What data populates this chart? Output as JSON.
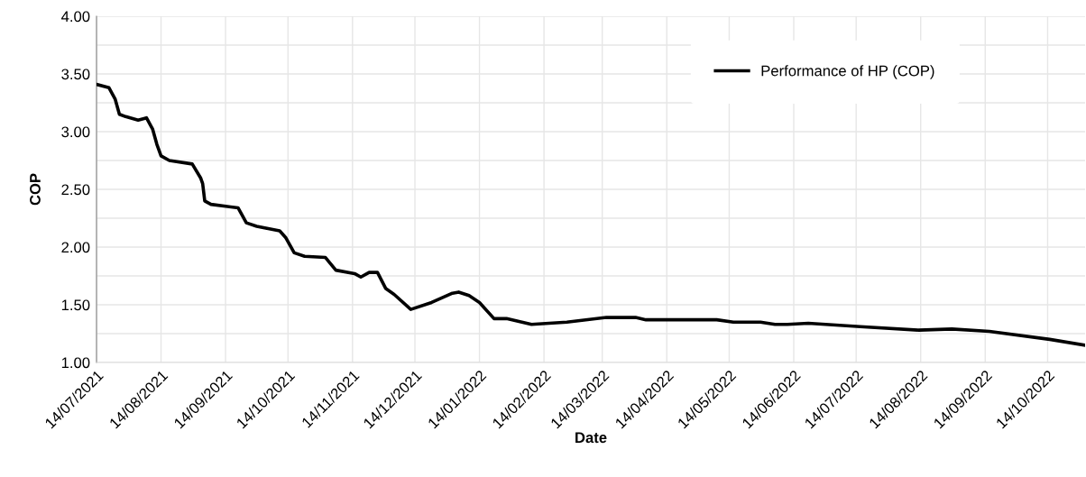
{
  "chart_data": {
    "type": "line",
    "xlabel": "Date",
    "ylabel": "COP",
    "series": [
      {
        "name": "Performance of HP (COP)",
        "color": "#000000",
        "x": [
          "2021-07-14",
          "2021-07-20",
          "2021-07-23",
          "2021-07-25",
          "2021-07-28",
          "2021-08-03",
          "2021-08-07",
          "2021-08-10",
          "2021-08-12",
          "2021-08-14",
          "2021-08-18",
          "2021-08-29",
          "2021-09-02",
          "2021-09-03",
          "2021-09-04",
          "2021-09-07",
          "2021-09-20",
          "2021-09-24",
          "2021-09-29",
          "2021-10-10",
          "2021-10-13",
          "2021-10-17",
          "2021-10-22",
          "2021-11-01",
          "2021-11-06",
          "2021-11-15",
          "2021-11-18",
          "2021-11-22",
          "2021-11-26",
          "2021-11-30",
          "2021-12-04",
          "2021-12-12",
          "2021-12-22",
          "2022-01-01",
          "2022-01-04",
          "2022-01-09",
          "2022-01-14",
          "2022-01-21",
          "2022-01-27",
          "2022-02-08",
          "2022-02-25",
          "2022-03-16",
          "2022-03-30",
          "2022-04-04",
          "2022-04-22",
          "2022-05-08",
          "2022-05-16",
          "2022-05-29",
          "2022-06-05",
          "2022-06-11",
          "2022-06-21",
          "2022-07-16",
          "2022-08-13",
          "2022-08-29",
          "2022-09-16",
          "2022-10-15",
          "2022-11-01"
        ],
        "values": [
          3.41,
          3.38,
          3.28,
          3.15,
          3.13,
          3.1,
          3.12,
          3.02,
          2.89,
          2.79,
          2.75,
          2.72,
          2.6,
          2.55,
          2.4,
          2.37,
          2.34,
          2.21,
          2.18,
          2.14,
          2.08,
          1.95,
          1.92,
          1.91,
          1.8,
          1.77,
          1.74,
          1.78,
          1.78,
          1.64,
          1.59,
          1.46,
          1.52,
          1.6,
          1.61,
          1.58,
          1.52,
          1.38,
          1.38,
          1.33,
          1.35,
          1.39,
          1.39,
          1.37,
          1.37,
          1.37,
          1.35,
          1.35,
          1.33,
          1.33,
          1.34,
          1.31,
          1.28,
          1.29,
          1.27,
          1.2,
          1.15
        ]
      }
    ],
    "xlim": [
      "2021-07-14",
      "2022-11-01"
    ],
    "xticks": [
      {
        "value": "2021-07-14",
        "label": "14/07/2021"
      },
      {
        "value": "2021-08-14",
        "label": "14/08/2021"
      },
      {
        "value": "2021-09-14",
        "label": "14/09/2021"
      },
      {
        "value": "2021-10-14",
        "label": "14/10/2021"
      },
      {
        "value": "2021-11-14",
        "label": "14/11/2021"
      },
      {
        "value": "2021-12-14",
        "label": "14/12/2021"
      },
      {
        "value": "2022-01-14",
        "label": "14/01/2022"
      },
      {
        "value": "2022-02-14",
        "label": "14/02/2022"
      },
      {
        "value": "2022-03-14",
        "label": "14/03/2022"
      },
      {
        "value": "2022-04-14",
        "label": "14/04/2022"
      },
      {
        "value": "2022-05-14",
        "label": "14/05/2022"
      },
      {
        "value": "2022-06-14",
        "label": "14/06/2022"
      },
      {
        "value": "2022-07-14",
        "label": "14/07/2022"
      },
      {
        "value": "2022-08-14",
        "label": "14/08/2022"
      },
      {
        "value": "2022-09-14",
        "label": "14/09/2022"
      },
      {
        "value": "2022-10-14",
        "label": "14/10/2022"
      }
    ],
    "ylim": [
      1,
      4
    ],
    "yticks": [
      {
        "value": 1,
        "label": "1.00"
      },
      {
        "value": 1.25,
        "label": null
      },
      {
        "value": 1.5,
        "label": "1.50"
      },
      {
        "value": 1.75,
        "label": null
      },
      {
        "value": 2,
        "label": "2.00"
      },
      {
        "value": 2.25,
        "label": null
      },
      {
        "value": 2.5,
        "label": "2.50"
      },
      {
        "value": 2.75,
        "label": null
      },
      {
        "value": 3,
        "label": "3.00"
      },
      {
        "value": 3.25,
        "label": null
      },
      {
        "value": 3.5,
        "label": "3.50"
      },
      {
        "value": 3.75,
        "label": null
      },
      {
        "value": 4,
        "label": "4.00"
      }
    ],
    "grid": true,
    "legend": "top right",
    "marker": "none",
    "line_style": "solid"
  }
}
